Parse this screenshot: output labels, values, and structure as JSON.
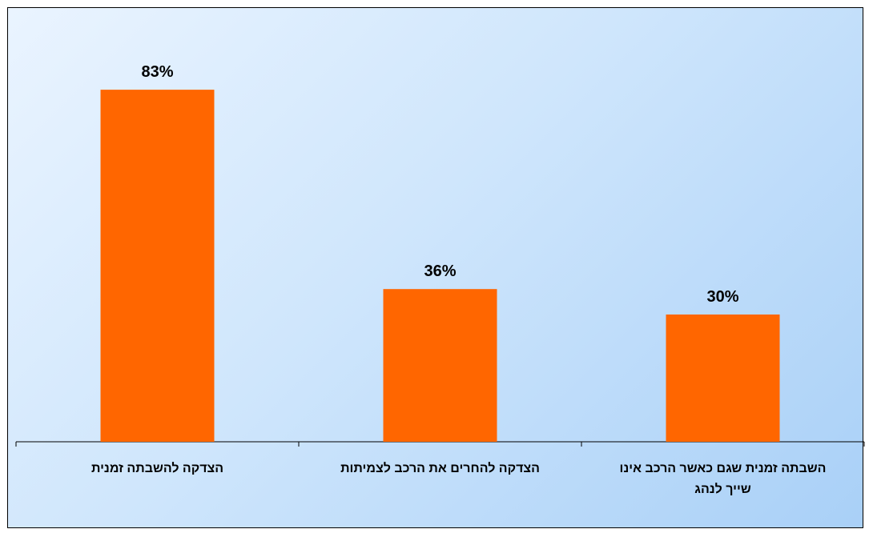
{
  "chart_data": {
    "type": "bar",
    "categories": [
      [
        "הצדקה להשבתה זמנית"
      ],
      [
        "הצדקה להחרים את הרכב לצמיתות"
      ],
      [
        "השבתה זמנית שגם כאשר הרכב אינו",
        "שייך לנהג"
      ]
    ],
    "values": [
      83,
      36,
      30
    ],
    "value_labels": [
      "83%",
      "36%",
      "30%"
    ],
    "ylim": [
      0,
      100
    ],
    "bar_color": "#ff6600",
    "background_colors": [
      "#eaf4ff",
      "#a9d0f7"
    ],
    "grid": false,
    "legend": "none"
  }
}
